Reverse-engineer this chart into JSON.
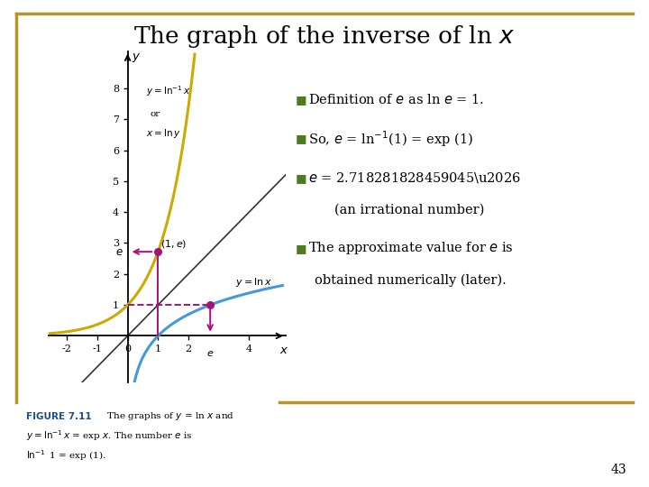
{
  "bg_color": "#ffffff",
  "border_color": "#b8952a",
  "curve_ln_color": "#4499dd",
  "curve_exp_color": "#ccaa00",
  "line_color": "#333333",
  "annotation_color": "#aa1177",
  "bullet_color": "#4d7c1e",
  "xlim": [
    -2.6,
    5.2
  ],
  "ylim": [
    -1.5,
    9.2
  ],
  "xticks": [
    -2,
    -1,
    0,
    1,
    2,
    4
  ],
  "yticks": [
    1,
    2,
    3,
    4,
    5,
    6,
    7,
    8
  ],
  "e_val": 2.718281828459045,
  "page_number": "43"
}
